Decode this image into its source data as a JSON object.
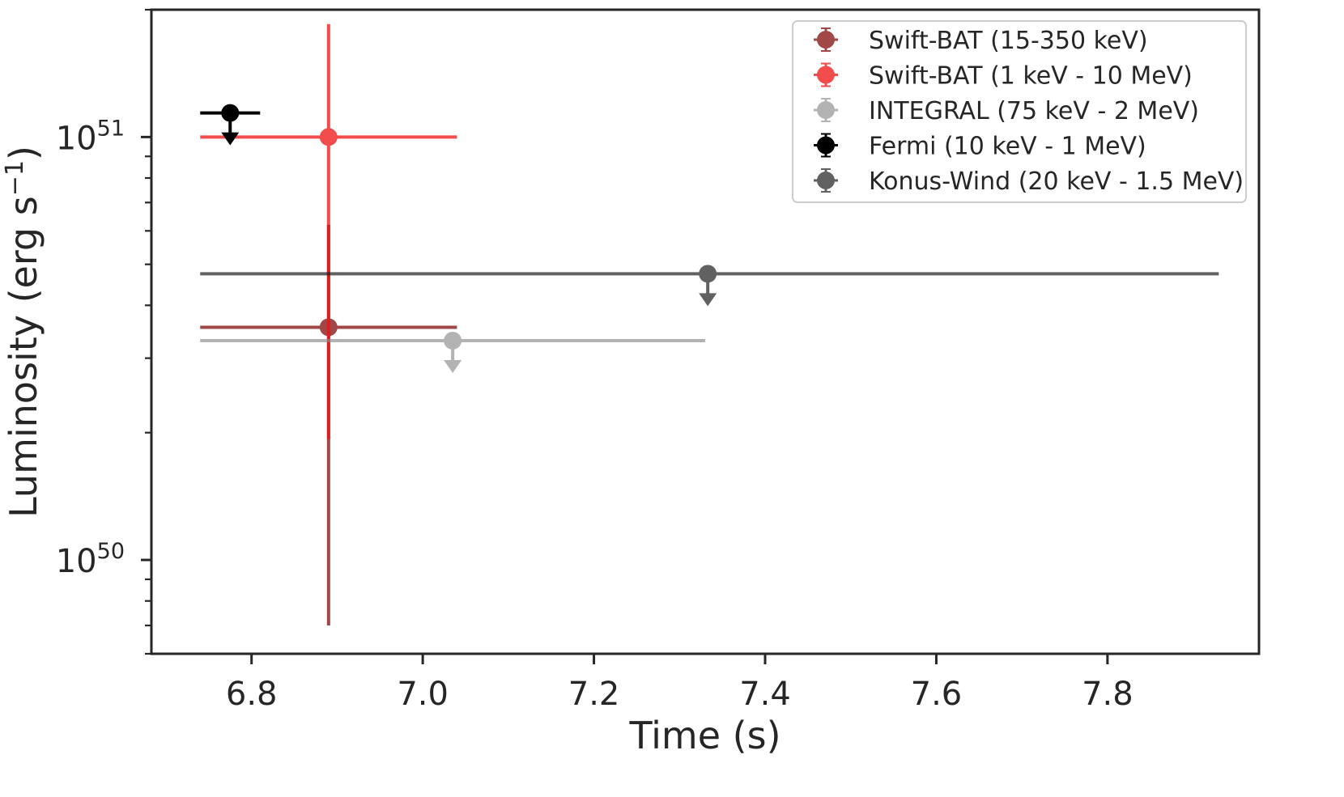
{
  "chart_data": {
    "type": "scatter",
    "title": "",
    "xlabel": "Time (s)",
    "ylabel": "Luminosity (erg s⁻¹)",
    "yscale": "log",
    "xlim": [
      6.683,
      7.977
    ],
    "ylim": [
      6e+49,
      2e+51
    ],
    "x_ticks": [
      {
        "value": 6.8,
        "label": "6.8"
      },
      {
        "value": 7.0,
        "label": "7.0"
      },
      {
        "value": 7.2,
        "label": "7.2"
      },
      {
        "value": 7.4,
        "label": "7.4"
      },
      {
        "value": 7.6,
        "label": "7.6"
      },
      {
        "value": 7.8,
        "label": "7.8"
      }
    ],
    "y_major_ticks": [
      {
        "value": 1e+50,
        "mantissa": "10",
        "exponent": "50"
      },
      {
        "value": 1e+51,
        "mantissa": "10",
        "exponent": "51"
      }
    ],
    "y_minor_ticks": [
      6e+49,
      7e+49,
      8e+49,
      9e+49,
      2e+50,
      3e+50,
      4e+50,
      5e+50,
      6e+50,
      7e+50,
      8e+50,
      9e+50,
      2e+51
    ],
    "legend_position": "top-right",
    "series": [
      {
        "name": "Swift-BAT (15-350 keV)",
        "color": "#8b1a1a",
        "opacity": 0.8,
        "x": 6.89,
        "y": 3.55e+50,
        "xerr": [
          6.74,
          7.04
        ],
        "yerr": [
          7e+49,
          6.2e+50
        ],
        "upper_limit": false
      },
      {
        "name": "Swift-BAT (1 keV - 10 MeV)",
        "color": "#ee1111",
        "opacity": 0.75,
        "x": 6.89,
        "y": 1e+51,
        "xerr": [
          6.74,
          7.04
        ],
        "yerr": [
          1.93e+50,
          1.85e+51
        ],
        "upper_limit": false
      },
      {
        "name": "INTEGRAL (75 keV - 2 MeV)",
        "color": "#8c8c8c",
        "opacity": 0.65,
        "x": 7.035,
        "y": 3.3e+50,
        "xerr": [
          6.74,
          7.33
        ],
        "yerr": null,
        "upper_limit": true
      },
      {
        "name": "Fermi (10 keV - 1 MeV)",
        "color": "#000000",
        "opacity": 1.0,
        "x": 6.775,
        "y": 1.14e+51,
        "xerr": [
          6.74,
          6.81
        ],
        "yerr": null,
        "upper_limit": true
      },
      {
        "name": "Konus-Wind (20 keV - 1.5 MeV)",
        "color": "#1f1f1f",
        "opacity": 0.7,
        "x": 7.333,
        "y": 4.75e+50,
        "xerr": [
          6.74,
          7.93
        ],
        "yerr": null,
        "upper_limit": true
      }
    ]
  }
}
